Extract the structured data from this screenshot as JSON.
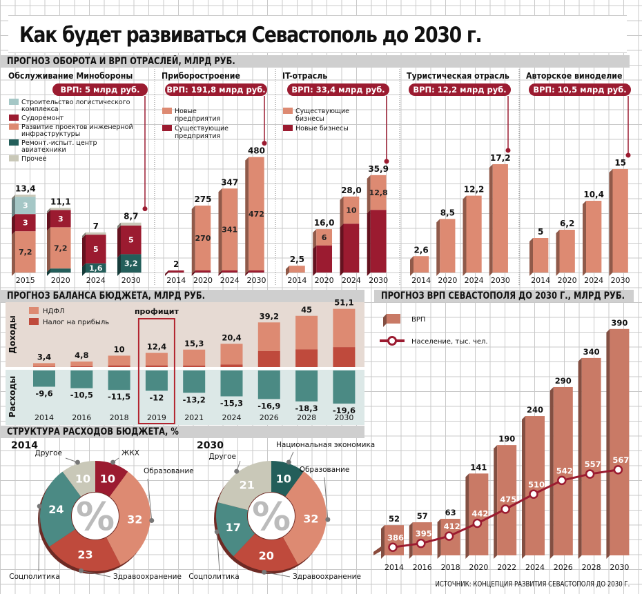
{
  "title": "Как будет развиваться Севастополь до 2030 г.",
  "sections": {
    "industries": "ПРОГНОЗ ОБОРОТА И ВРП ОТРАСЛЕЙ, МЛРД РУБ.",
    "budget_balance": "ПРОГНОЗ БАЛАНСА БЮДЖЕТА, МЛРД РУБ.",
    "grp": "ПРОГНОЗ ВРП СЕВАСТОПОЛЯ ДО 2030 Г., МЛРД РУБ.",
    "budget_structure": "СТРУКТУРА РАСХОДОВ БЮДЖЕТА, %"
  },
  "source": "ИСТОЧНИК: КОНЦЕПЦИЯ РАЗВИТИЯ СЕВАСТОПОЛЯ ДО 2030 Г.",
  "colors": {
    "teal_light": "#a5c7c6",
    "crimson": "#9b1b30",
    "salmon": "#dd8a72",
    "dark_teal": "#235e5a",
    "beige": "#c9c8b8",
    "red": "#bf4a3c",
    "teal": "#4b8a84",
    "grp_bar": "#c97a66",
    "grp_side": "#8a4a3c"
  },
  "chart_data": [
    {
      "id": "defense",
      "type": "bar",
      "stacked": true,
      "title": "Обслуживание Минобороны",
      "badge": "ВРП: 5 млрд руб.",
      "categories": [
        "2015",
        "2020",
        "2024",
        "2030"
      ],
      "totals": [
        "13,4",
        "11,1",
        "7",
        "8,7"
      ],
      "total_values": [
        13.4,
        11.1,
        7,
        8.7
      ],
      "series": [
        {
          "name": "Ремонт.-испыт. центр авиатехники",
          "color": "#235e5a",
          "values": [
            0,
            0.7,
            1.6,
            3.2
          ],
          "labels": [
            "",
            "",
            "1,6",
            "3,2"
          ]
        },
        {
          "name": "Развитие проектов инженерной инфраструктуры",
          "color": "#dd8a72",
          "values": [
            7.2,
            7.2,
            0,
            0
          ],
          "labels": [
            "7,2",
            "7,2",
            "",
            ""
          ]
        },
        {
          "name": "Судоремонт",
          "color": "#9b1b30",
          "values": [
            3,
            3,
            5,
            5
          ],
          "labels": [
            "3",
            "3",
            "5",
            "5"
          ]
        },
        {
          "name": "Строительство логистического комплекса",
          "color": "#a5c7c6",
          "values": [
            3,
            0,
            0,
            0
          ],
          "labels": [
            "3",
            "",
            "",
            ""
          ]
        },
        {
          "name": "Прочее",
          "color": "#c9c8b8",
          "values": [
            0.2,
            0.2,
            0.4,
            0.5
          ],
          "labels": [
            "",
            "",
            "",
            ""
          ]
        }
      ],
      "legend": [
        {
          "name": "Строительство логистического комплекса",
          "color": "#a5c7c6"
        },
        {
          "name": "Судоремонт",
          "color": "#9b1b30"
        },
        {
          "name": "Развитие проектов инженерной инфраструктуры",
          "color": "#dd8a72"
        },
        {
          "name": "Ремонт.-испыт. центр авиатехники",
          "color": "#235e5a"
        },
        {
          "name": "Прочее",
          "color": "#c9c8b8"
        }
      ],
      "ymax": 16
    },
    {
      "id": "instruments",
      "type": "bar",
      "stacked": true,
      "title": "Приборостроение",
      "badge": "ВРП: 191,8 млрд руб.",
      "categories": [
        "2014",
        "2020",
        "2024",
        "2030"
      ],
      "totals": [
        "2",
        "275",
        "347",
        "480"
      ],
      "total_values": [
        2,
        275,
        347,
        480
      ],
      "series": [
        {
          "name": "Существующие предприятия",
          "color": "#9b1b30",
          "values": [
            2,
            5,
            6,
            8
          ],
          "labels": [
            "",
            "",
            "",
            ""
          ]
        },
        {
          "name": "Новые предприятия",
          "color": "#dd8a72",
          "values": [
            0,
            270,
            341,
            472
          ],
          "labels": [
            "",
            "270",
            "341",
            "472"
          ]
        }
      ],
      "legend": [
        {
          "name": "Новые предприятия",
          "color": "#dd8a72"
        },
        {
          "name": "Существующие предприятия",
          "color": "#9b1b30"
        }
      ],
      "ymax": 560
    },
    {
      "id": "it",
      "type": "bar",
      "stacked": true,
      "title": "IT-отрасль",
      "badge": "ВРП: 33,4 млрд руб.",
      "categories": [
        "2014",
        "2020",
        "2024",
        "2030"
      ],
      "totals": [
        "2,5",
        "16,0",
        "28,0",
        "35,9"
      ],
      "total_values": [
        2.5,
        16.0,
        28.0,
        35.9
      ],
      "series": [
        {
          "name": "Новые бизнесы",
          "color": "#9b1b30",
          "values": [
            0,
            10,
            18,
            23.1
          ],
          "labels": [
            "",
            "",
            "",
            ""
          ]
        },
        {
          "name": "Существующие бизнесы",
          "color": "#dd8a72",
          "values": [
            2.5,
            6,
            10,
            12.8
          ],
          "labels": [
            "",
            "6",
            "10",
            "12,8"
          ]
        }
      ],
      "legend": [
        {
          "name": "Существующие бизнесы",
          "color": "#dd8a72"
        },
        {
          "name": "Новые бизнесы",
          "color": "#9b1b30"
        }
      ],
      "ymax": 44
    },
    {
      "id": "tourism",
      "type": "bar",
      "title": "Туристическая отрасль",
      "badge": "ВРП: 12,2 млрд руб.",
      "categories": [
        "2014",
        "2020",
        "2024",
        "2030"
      ],
      "totals": [
        "2,6",
        "8,5",
        "12,2",
        "17,2"
      ],
      "total_values": [
        2.6,
        8.5,
        12.2,
        17.2
      ],
      "series": [
        {
          "name": "Туристическая отрасль",
          "color": "#dd8a72",
          "values": [
            2.6,
            8.5,
            12.2,
            17.2
          ],
          "labels": [
            "",
            "",
            "",
            ""
          ]
        }
      ],
      "legend": [],
      "ymax": 23
    },
    {
      "id": "wine",
      "type": "bar",
      "title": "Авторское виноделие",
      "badge": "ВРП: 10,5 млрд руб.",
      "categories": [
        "2014",
        "2020",
        "2024",
        "2030"
      ],
      "totals": [
        "5",
        "6,2",
        "10,4",
        "15"
      ],
      "total_values": [
        5,
        6.2,
        10.4,
        15
      ],
      "series": [
        {
          "name": "Авторское виноделие",
          "color": "#dd8a72",
          "values": [
            5,
            6.2,
            10.4,
            15
          ],
          "labels": [
            "",
            "",
            "",
            ""
          ]
        }
      ],
      "legend": [],
      "ymax": 21
    },
    {
      "id": "budget",
      "type": "bar",
      "title": "ПРОГНОЗ БАЛАНСА БЮДЖЕТА, МЛРД РУБ.",
      "income_label": "Доходы",
      "expense_label": "Расходы",
      "highlight_label": "профицит",
      "highlight_year": "2019",
      "categories": [
        "2014",
        "2016",
        "2018",
        "2019",
        "2021",
        "2024",
        "2026",
        "2028",
        "2030"
      ],
      "income_totals": [
        "3,4",
        "4,8",
        "10",
        "12,4",
        "15,3",
        "20,4",
        "39,2",
        "45",
        "51,1"
      ],
      "income_values": [
        3.4,
        4.8,
        10,
        12.4,
        15.3,
        20.4,
        39.2,
        45,
        51.1
      ],
      "profit_tax_values": [
        0.4,
        0.7,
        1.4,
        1.4,
        1.3,
        2.2,
        14,
        15.5,
        17.5
      ],
      "expense_labels": [
        "-9,6",
        "-10,5",
        "-11,5",
        "-12",
        "-13,2",
        "-15,3",
        "-16,9",
        "-18,3",
        "-19,6"
      ],
      "expense_values": [
        -9.6,
        -10.5,
        -11.5,
        -12,
        -13.2,
        -15.3,
        -16.9,
        -18.3,
        -19.6
      ],
      "legend": [
        {
          "name": "НДФЛ",
          "color": "#dd8a72"
        },
        {
          "name": "Налог на прибыль",
          "color": "#bf4a3c"
        }
      ]
    },
    {
      "id": "grp",
      "type": "bar",
      "title": "ПРОГНОЗ ВРП СЕВАСТОПОЛЯ ДО 2030 Г., МЛРД РУБ.",
      "categories": [
        "2014",
        "2016",
        "2018",
        "2020",
        "2022",
        "2024",
        "2026",
        "2028",
        "2030"
      ],
      "series": [
        {
          "name": "ВРП",
          "type": "bar",
          "values": [
            52,
            57,
            63,
            141,
            190,
            240,
            290,
            340,
            390
          ]
        },
        {
          "name": "Население, тыс. чел.",
          "type": "line",
          "values": [
            386,
            395,
            412,
            442,
            475,
            510,
            542,
            557,
            567
          ]
        }
      ],
      "ymax": 410
    },
    {
      "id": "pie2014",
      "type": "pie",
      "donut": true,
      "title": "2014",
      "center_label": "%",
      "slices": [
        {
          "name": "ЖКХ",
          "value": 10,
          "color": "#9b1b30"
        },
        {
          "name": "Образование",
          "value": 32,
          "color": "#dd8a72"
        },
        {
          "name": "Здравоохранение",
          "value": 23,
          "color": "#bf4a3c"
        },
        {
          "name": "Соцполитика",
          "value": 24,
          "color": "#4b8a84"
        },
        {
          "name": "Другое",
          "value": 10,
          "color": "#c9c8b8"
        }
      ]
    },
    {
      "id": "pie2030",
      "type": "pie",
      "donut": true,
      "title": "2030",
      "center_label": "%",
      "slices": [
        {
          "name": "Национальная экономика",
          "value": 10,
          "color": "#235e5a"
        },
        {
          "name": "Образование",
          "value": 32,
          "color": "#dd8a72"
        },
        {
          "name": "Здравоохранение",
          "value": 20,
          "color": "#bf4a3c"
        },
        {
          "name": "Соцполитика",
          "value": 17,
          "color": "#4b8a84"
        },
        {
          "name": "Другое",
          "value": 21,
          "color": "#c9c8b8"
        }
      ]
    }
  ]
}
